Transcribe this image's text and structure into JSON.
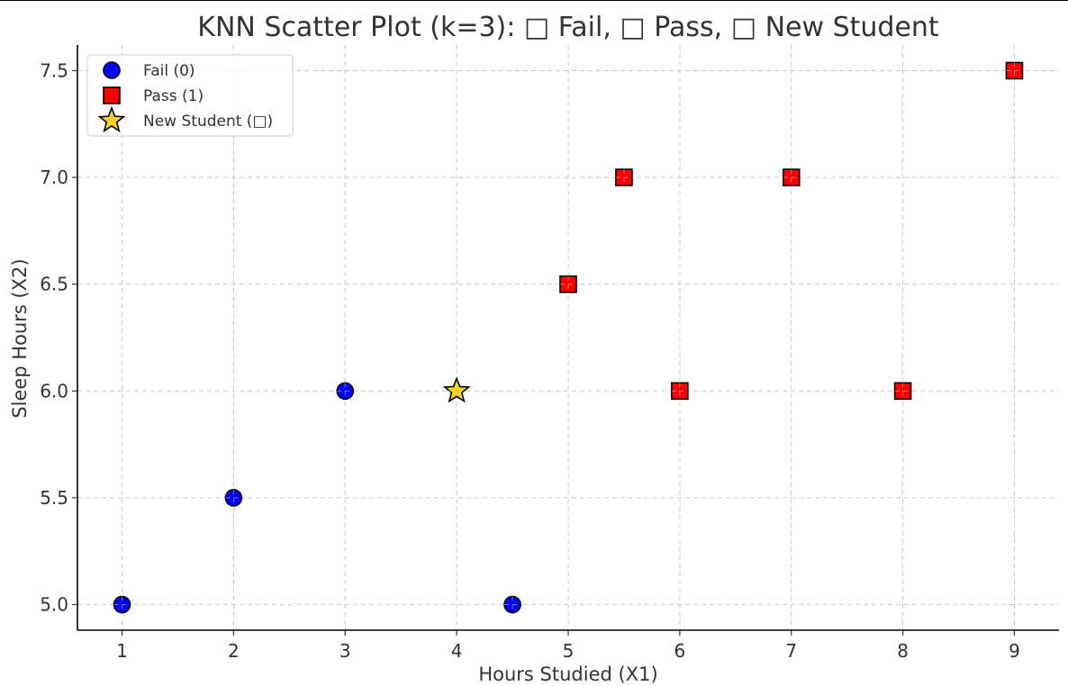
{
  "chart_data": {
    "type": "scatter",
    "title": "KNN Scatter Plot (k=3): □ Fail, □ Pass, □ New Student",
    "xlabel": "Hours Studied (X1)",
    "ylabel": "Sleep Hours (X2)",
    "xlim": [
      0.6,
      9.4
    ],
    "ylim": [
      4.88,
      7.62
    ],
    "x_ticks": [
      1,
      2,
      3,
      4,
      5,
      6,
      7,
      8,
      9
    ],
    "y_ticks": [
      "5.0",
      "5.5",
      "6.0",
      "6.5",
      "7.0",
      "7.5"
    ],
    "grid": true,
    "legend_position": "top-left",
    "series": [
      {
        "name": "Fail (0)",
        "marker": "circle",
        "color": "#0000ff",
        "points": [
          {
            "x": 1,
            "y": 5.0
          },
          {
            "x": 2,
            "y": 5.5
          },
          {
            "x": 3,
            "y": 6.0
          },
          {
            "x": 4.5,
            "y": 5.0
          }
        ]
      },
      {
        "name": "Pass (1)",
        "marker": "square",
        "color": "#ff0000",
        "points": [
          {
            "x": 5,
            "y": 6.5
          },
          {
            "x": 5.5,
            "y": 7.0
          },
          {
            "x": 6,
            "y": 6.0
          },
          {
            "x": 7,
            "y": 7.0
          },
          {
            "x": 8,
            "y": 6.0
          },
          {
            "x": 9,
            "y": 7.5
          }
        ]
      },
      {
        "name": "New Student (□)",
        "marker": "star",
        "color": "#ffd21f",
        "points": [
          {
            "x": 4,
            "y": 6.0
          }
        ]
      }
    ]
  }
}
